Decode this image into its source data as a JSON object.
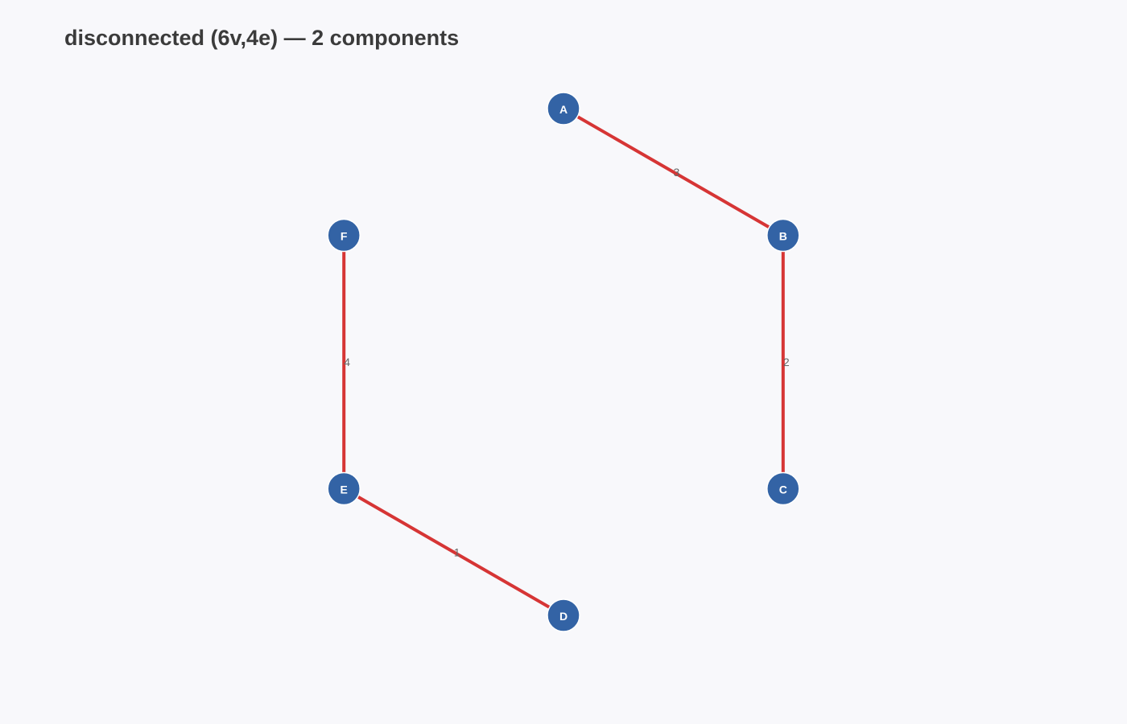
{
  "title": "disconnected (6v,4e) — 2 components",
  "colors": {
    "background": "#f8f8fb",
    "edge": "#d63535",
    "node_fill": "#3363a5",
    "node_text": "#ffffff",
    "title_text": "#3b3b3b",
    "weight_text": "#666666"
  },
  "graph": {
    "nodes": [
      {
        "id": "A",
        "label": "A"
      },
      {
        "id": "B",
        "label": "B"
      },
      {
        "id": "C",
        "label": "C"
      },
      {
        "id": "D",
        "label": "D"
      },
      {
        "id": "E",
        "label": "E"
      },
      {
        "id": "F",
        "label": "F"
      }
    ],
    "edges": [
      {
        "source": "A",
        "target": "B",
        "weight": "3"
      },
      {
        "source": "B",
        "target": "C",
        "weight": "2"
      },
      {
        "source": "E",
        "target": "D",
        "weight": "1"
      },
      {
        "source": "F",
        "target": "E",
        "weight": "4"
      }
    ]
  }
}
